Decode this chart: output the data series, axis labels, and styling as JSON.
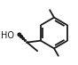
{
  "bg_color": "#ffffff",
  "line_color": "#1a1a1a",
  "line_width": 1.3,
  "fig_width": 0.88,
  "fig_height": 0.73,
  "dpi": 100,
  "ho_text": "HO",
  "ho_fontsize": 7.0
}
